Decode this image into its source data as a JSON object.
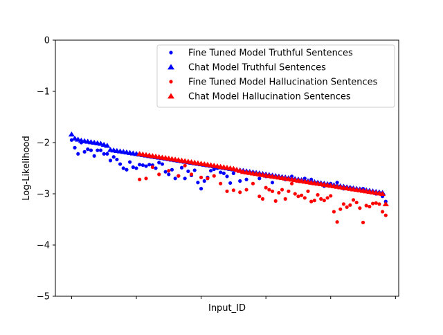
{
  "chart_data": {
    "type": "scatter",
    "title": "",
    "xlabel": "Input_ID",
    "ylabel": "Log-Likelihood",
    "xlim": [
      -5,
      101
    ],
    "ylim": [
      -5,
      0
    ],
    "yticks": [
      0,
      -1,
      -2,
      -3,
      -4,
      -5
    ],
    "ytick_labels": [
      "0",
      "−1",
      "−2",
      "−3",
      "−4",
      "−5"
    ],
    "xticks": [
      0,
      20,
      40,
      60,
      80,
      100
    ],
    "grid": false,
    "legend_position": "top-right",
    "colors": {
      "truthful": "#0000ff",
      "hallucination": "#ff0000"
    },
    "series": [
      {
        "name": "Fine Tuned Model Truthful Sentences",
        "marker": "circle",
        "color": "#0000ff",
        "x": [
          0,
          1,
          2,
          3,
          4,
          5,
          6,
          7,
          8,
          9,
          10,
          11,
          12,
          13,
          14,
          15,
          16,
          17,
          18,
          19,
          20,
          21,
          22,
          23,
          24,
          25,
          26,
          27,
          28,
          29,
          30,
          31,
          32,
          33,
          34,
          35,
          36,
          37,
          38,
          39,
          40,
          41,
          42,
          43,
          44,
          45,
          46,
          47,
          48,
          49,
          50,
          52,
          54,
          56,
          58,
          60,
          62,
          64,
          66,
          68,
          70,
          72,
          74,
          76,
          78,
          80,
          82,
          84,
          86,
          88,
          90,
          92,
          94,
          96,
          97
        ],
        "y": [
          -1.95,
          -2.1,
          -2.22,
          -2.0,
          -2.18,
          -2.13,
          -2.15,
          -2.26,
          -2.15,
          -2.15,
          -2.22,
          -2.22,
          -2.35,
          -2.28,
          -2.33,
          -2.42,
          -2.5,
          -2.53,
          -2.38,
          -2.48,
          -2.5,
          -2.43,
          -2.44,
          -2.46,
          -2.43,
          -2.44,
          -2.5,
          -2.39,
          -2.42,
          -2.57,
          -2.62,
          -2.53,
          -2.7,
          -2.65,
          -2.49,
          -2.7,
          -2.56,
          -2.64,
          -2.54,
          -2.78,
          -2.9,
          -2.75,
          -2.68,
          -2.55,
          -2.52,
          -2.5,
          -2.58,
          -2.6,
          -2.66,
          -2.79,
          -2.6,
          -2.75,
          -2.72,
          -2.58,
          -2.7,
          -2.66,
          -2.78,
          -2.68,
          -2.72,
          -2.66,
          -2.75,
          -2.7,
          -2.72,
          -2.78,
          -2.85,
          -2.8,
          -2.78,
          -2.9,
          -2.88,
          -2.92,
          -2.9,
          -2.95,
          -3.0,
          -3.05,
          -3.15
        ]
      },
      {
        "name": "Chat Model Truthful Sentences",
        "marker": "triangle",
        "color": "#0000ff",
        "x": [
          0,
          1,
          2,
          3,
          4,
          5,
          6,
          7,
          8,
          9,
          10,
          11,
          12,
          13,
          14,
          15,
          16,
          17,
          18,
          19,
          20,
          21,
          22,
          23,
          24,
          25,
          26,
          27,
          28,
          29,
          30,
          31,
          32,
          33,
          34,
          35,
          36,
          37,
          38,
          39,
          40,
          41,
          42,
          43,
          44,
          45,
          46,
          47,
          48,
          49,
          50,
          51,
          52,
          53,
          54,
          55,
          56,
          57,
          58,
          59,
          60,
          61,
          62,
          63,
          64,
          65,
          66,
          67,
          68,
          69,
          70,
          71,
          72,
          73,
          74,
          75,
          76,
          77,
          78,
          79,
          80,
          81,
          82,
          83,
          84,
          85,
          86,
          87,
          88,
          89,
          90,
          91,
          92,
          93,
          94,
          95,
          96
        ],
        "y": [
          -1.84,
          -1.92,
          -1.94,
          -1.96,
          -1.97,
          -1.98,
          -1.99,
          -2.0,
          -2.01,
          -2.02,
          -2.04,
          -2.06,
          -2.14,
          -2.15,
          -2.16,
          -2.17,
          -2.18,
          -2.19,
          -2.2,
          -2.21,
          -2.22,
          -2.23,
          -2.24,
          -2.25,
          -2.26,
          -2.27,
          -2.28,
          -2.29,
          -2.3,
          -2.31,
          -2.32,
          -2.33,
          -2.34,
          -2.35,
          -2.36,
          -2.37,
          -2.38,
          -2.39,
          -2.4,
          -2.41,
          -2.42,
          -2.43,
          -2.44,
          -2.45,
          -2.46,
          -2.47,
          -2.48,
          -2.49,
          -2.5,
          -2.51,
          -2.52,
          -2.53,
          -2.54,
          -2.55,
          -2.56,
          -2.57,
          -2.58,
          -2.59,
          -2.6,
          -2.61,
          -2.62,
          -2.63,
          -2.64,
          -2.65,
          -2.66,
          -2.67,
          -2.68,
          -2.69,
          -2.7,
          -2.71,
          -2.72,
          -2.73,
          -2.74,
          -2.75,
          -2.76,
          -2.77,
          -2.78,
          -2.79,
          -2.8,
          -2.81,
          -2.82,
          -2.83,
          -2.84,
          -2.85,
          -2.86,
          -2.87,
          -2.88,
          -2.89,
          -2.9,
          -2.91,
          -2.92,
          -2.93,
          -2.94,
          -2.95,
          -2.96,
          -2.97,
          -2.98
        ]
      },
      {
        "name": "Fine Tuned Model Hallucination Sentences",
        "marker": "circle",
        "color": "#ff0000",
        "x": [
          21,
          23,
          25,
          27,
          30,
          33,
          35,
          37,
          40,
          42,
          44,
          46,
          48,
          50,
          52,
          54,
          56,
          58,
          59,
          60,
          61,
          62,
          63,
          64,
          65,
          66,
          67,
          68,
          69,
          70,
          71,
          72,
          73,
          74,
          75,
          76,
          77,
          78,
          79,
          80,
          81,
          82,
          83,
          84,
          85,
          86,
          87,
          88,
          89,
          90,
          91,
          92,
          93,
          94,
          95,
          96,
          97
        ],
        "y": [
          -2.72,
          -2.7,
          -2.48,
          -2.62,
          -2.55,
          -2.65,
          -2.45,
          -2.62,
          -2.68,
          -2.7,
          -2.65,
          -2.8,
          -2.95,
          -2.93,
          -2.97,
          -2.92,
          -2.8,
          -3.05,
          -3.1,
          -2.88,
          -2.92,
          -2.95,
          -3.14,
          -2.98,
          -2.92,
          -3.1,
          -2.95,
          -2.8,
          -3.0,
          -3.05,
          -3.03,
          -3.08,
          -2.95,
          -3.15,
          -3.13,
          -3.02,
          -3.1,
          -3.13,
          -3.08,
          -3.04,
          -3.35,
          -3.55,
          -3.3,
          -3.2,
          -3.26,
          -3.22,
          -3.12,
          -3.17,
          -3.28,
          -3.56,
          -3.23,
          -3.25,
          -3.19,
          -3.18,
          -3.2,
          -3.35,
          -3.42
        ]
      },
      {
        "name": "Chat Model Hallucination Sentences",
        "marker": "triangle",
        "color": "#ff0000",
        "x": [
          21,
          22,
          23,
          24,
          25,
          26,
          27,
          28,
          29,
          30,
          31,
          32,
          33,
          34,
          35,
          36,
          37,
          38,
          39,
          40,
          41,
          42,
          43,
          44,
          45,
          46,
          47,
          48,
          49,
          50,
          51,
          52,
          53,
          54,
          55,
          56,
          57,
          58,
          59,
          60,
          61,
          62,
          63,
          64,
          65,
          66,
          67,
          68,
          69,
          70,
          71,
          72,
          73,
          74,
          75,
          76,
          77,
          78,
          79,
          80,
          81,
          82,
          83,
          84,
          85,
          86,
          87,
          88,
          89,
          90,
          91,
          92,
          93,
          94,
          95,
          96,
          97
        ],
        "y": [
          -2.22,
          -2.23,
          -2.24,
          -2.25,
          -2.26,
          -2.27,
          -2.28,
          -2.29,
          -2.3,
          -2.31,
          -2.32,
          -2.33,
          -2.34,
          -2.35,
          -2.36,
          -2.37,
          -2.38,
          -2.39,
          -2.4,
          -2.41,
          -2.42,
          -2.43,
          -2.44,
          -2.45,
          -2.46,
          -2.47,
          -2.48,
          -2.49,
          -2.5,
          -2.51,
          -2.53,
          -2.55,
          -2.57,
          -2.58,
          -2.59,
          -2.6,
          -2.61,
          -2.62,
          -2.63,
          -2.64,
          -2.65,
          -2.66,
          -2.67,
          -2.68,
          -2.69,
          -2.7,
          -2.71,
          -2.72,
          -2.73,
          -2.74,
          -2.75,
          -2.76,
          -2.77,
          -2.78,
          -2.79,
          -2.8,
          -2.81,
          -2.82,
          -2.83,
          -2.84,
          -2.85,
          -2.86,
          -2.87,
          -2.88,
          -2.89,
          -2.9,
          -2.91,
          -2.92,
          -2.93,
          -2.94,
          -2.95,
          -2.96,
          -2.97,
          -2.98,
          -2.99,
          -3.0,
          -3.2
        ]
      }
    ]
  }
}
